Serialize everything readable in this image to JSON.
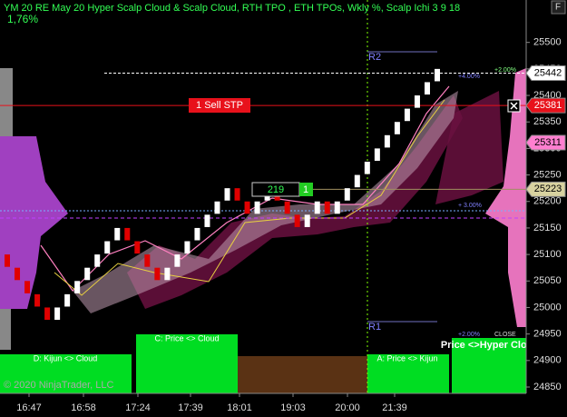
{
  "chart_data": {
    "type": "renko",
    "title": "YM 20 RE May 20 Hyper Scalp Cloud & Scalp Cloud, RTH TPO , ETH TPOs, Wkly %, Scalp Ichi 3 9 18",
    "subtitle": "1,76%",
    "categories": [
      "16:47",
      "16:58",
      "17:24",
      "17:39",
      "18:01",
      "19:03",
      "20:00",
      "21:39"
    ],
    "open": [
      25100,
      25075,
      25050,
      25025,
      25000,
      24975,
      25000,
      25025,
      25050,
      25075,
      25100,
      25125,
      25150,
      25125,
      25100,
      25075,
      25050,
      25075,
      25100,
      25125,
      25150,
      25175,
      25200,
      25225,
      25200,
      25175,
      25200,
      25225,
      25200,
      25175,
      25150,
      25175,
      25200,
      25175,
      25200,
      25225,
      25250,
      25275,
      25300,
      25325,
      25350,
      25375,
      25400,
      25425
    ],
    "close": [
      25075,
      25050,
      25025,
      25000,
      24975,
      25000,
      25025,
      25050,
      25075,
      25100,
      25125,
      25150,
      25125,
      25100,
      25075,
      25050,
      25075,
      25100,
      25125,
      25150,
      25175,
      25200,
      25225,
      25200,
      25175,
      25200,
      25225,
      25200,
      25175,
      25150,
      25175,
      25200,
      25175,
      25200,
      25225,
      25250,
      25275,
      25300,
      25325,
      25350,
      25375,
      25400,
      25425,
      25450
    ],
    "up_color": "#ffffff",
    "down_color": "#e00000",
    "ylim": [
      24838,
      25580
    ],
    "yticks": [
      24850,
      24900,
      24950,
      25000,
      25050,
      25100,
      25150,
      25200,
      25250,
      25300,
      25350,
      25400,
      25450,
      25500
    ],
    "price_tags": [
      {
        "value": 25442,
        "color": "#ffffff",
        "text_color": "#000000"
      },
      {
        "value": 25381,
        "color": "#e8111b",
        "text_color": "#ffffff"
      },
      {
        "value": 25311,
        "color": "#ff7fd0",
        "text_color": "#000000"
      },
      {
        "value": 25223,
        "color": "#d8d2a0",
        "text_color": "#000000"
      }
    ],
    "order_label": "1 Sell STP",
    "position_qty": "219",
    "position_size": "1",
    "annotations": {
      "r2": "R2",
      "r1": "R1",
      "p4": "+4.00%",
      "p2a": "+2.00%",
      "p3": "+ 3.00%",
      "p2b": "+2.00%",
      "close": "CLOSE"
    },
    "zones": [
      "D: Kijun <> Cloud",
      "C: Price <> Cloud",
      "A: Price <> Kijun",
      "Price <>Hyper Cloud"
    ],
    "copyright": "© 2020 NinjaTrader, LLC",
    "close_button": "F"
  }
}
